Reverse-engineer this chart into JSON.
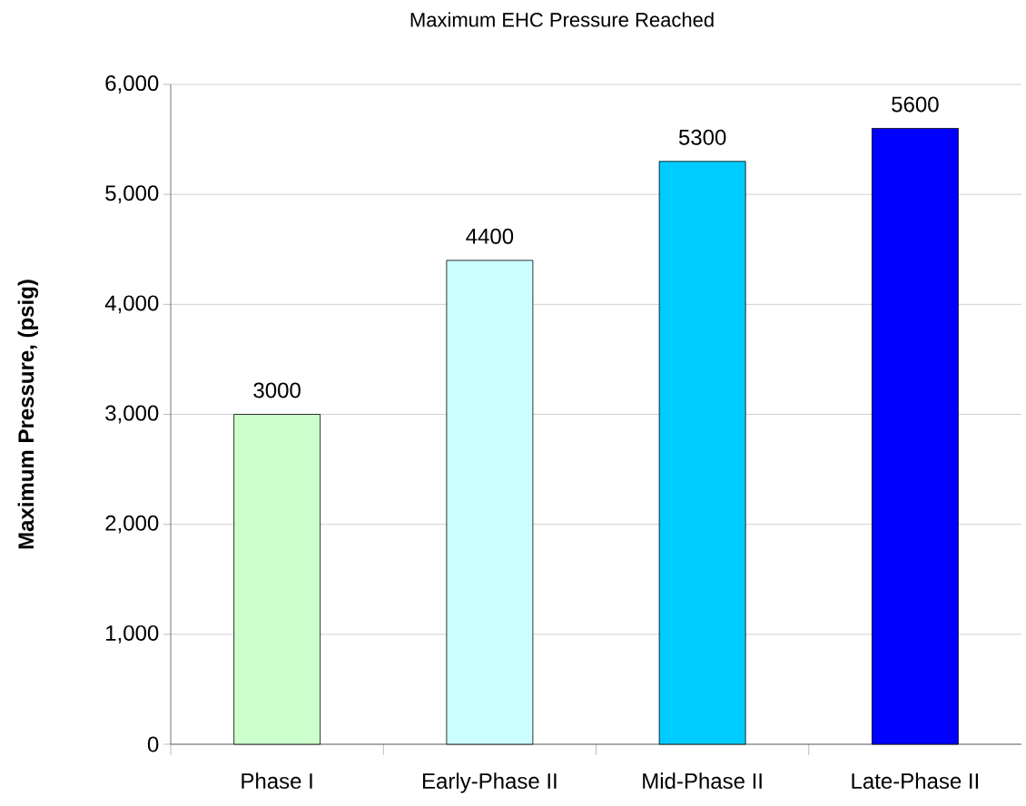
{
  "chart_data": {
    "type": "bar",
    "title": "Maximum EHC Pressure Reached",
    "ylabel": "Maximum Pressure, (psig)",
    "categories": [
      "Phase I",
      "Early-Phase II",
      "Mid-Phase II",
      "Late-Phase II"
    ],
    "values": [
      3000,
      4400,
      5300,
      5600
    ],
    "colors": [
      "#ccffcc",
      "#ccffff",
      "#00ccff",
      "#0000ff"
    ],
    "ylim": [
      0,
      6000
    ],
    "yticks": [
      0,
      {
        "value": 1000,
        "label": "1,000"
      },
      {
        "value": 2000,
        "label": "2,000"
      },
      {
        "value": 3000,
        "label": "3,000"
      },
      {
        "value": 4000,
        "label": "4,000"
      },
      {
        "value": 5000,
        "label": "5,000"
      },
      {
        "value": 6000,
        "label": "6,000"
      }
    ],
    "grid": "y",
    "data_labels": true
  }
}
